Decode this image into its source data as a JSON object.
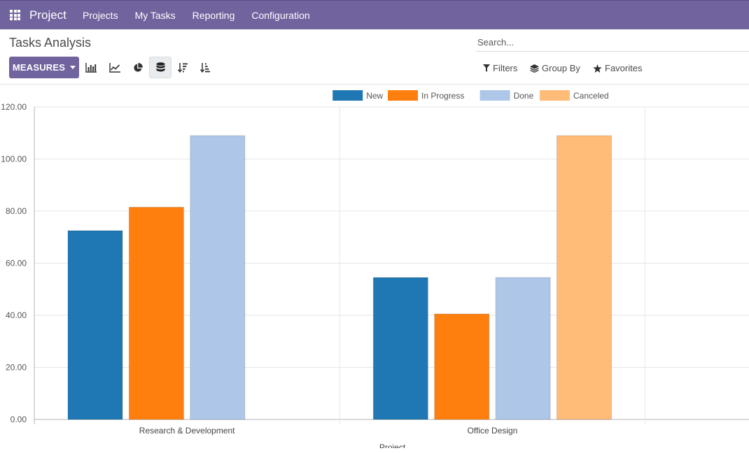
{
  "app": {
    "name": "Project"
  },
  "menu": [
    "Projects",
    "My Tasks",
    "Reporting",
    "Configuration"
  ],
  "control_panel": {
    "title": "Tasks Analysis",
    "measures_label": "MEASURES",
    "search_placeholder": "Search...",
    "filters_label": "Filters",
    "groupby_label": "Group By",
    "favorites_label": "Favorites"
  },
  "colors": {
    "brand": "#71639e"
  },
  "chart_data": {
    "type": "bar",
    "categories": [
      "Research & Development",
      "Office Design"
    ],
    "series": [
      {
        "name": "New",
        "color": "#1f77b4",
        "values": [
          72.5,
          54.5
        ]
      },
      {
        "name": "In Progress",
        "color": "#ff7f0e",
        "values": [
          81.5,
          40.5
        ]
      },
      {
        "name": "Done",
        "color": "#aec7e8",
        "values": [
          109,
          54.5
        ]
      },
      {
        "name": "Canceled",
        "color": "#ffbb78",
        "values": [
          null,
          109
        ]
      }
    ],
    "xlabel": "Project",
    "ylabel": "",
    "ylim": [
      0,
      120
    ],
    "yticks": [
      "0.00",
      "20.00",
      "40.00",
      "60.00",
      "80.00",
      "100.00",
      "120.00"
    ],
    "legend": "top",
    "grid": true
  }
}
